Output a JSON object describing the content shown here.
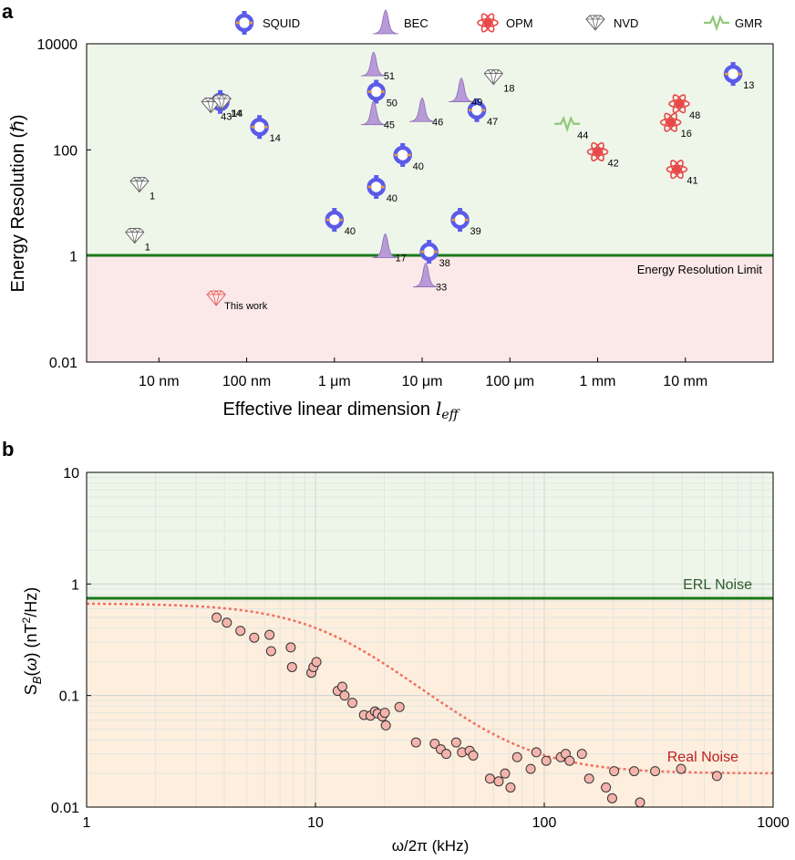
{
  "chart_data": [
    {
      "panel": "a",
      "type": "scatter",
      "xscale": "log",
      "yscale": "log",
      "xlabel": "Effective linear dimension",
      "xlabel_sym": "l",
      "xlabel_sub": "eff",
      "ylabel": "Energy Resolution (ℏ)",
      "xlim": [
        1.5e-09,
        0.1
      ],
      "ylim": [
        0.01,
        10000
      ],
      "xticks": [
        {
          "v": 1e-08,
          "label": "10 nm"
        },
        {
          "v": 1e-07,
          "label": "100 nm"
        },
        {
          "v": 1e-06,
          "label": "1 μm"
        },
        {
          "v": 1e-05,
          "label": "10 μm"
        },
        {
          "v": 0.0001,
          "label": "100 μm"
        },
        {
          "v": 0.001,
          "label": "1 mm"
        },
        {
          "v": 0.01,
          "label": "10 mm"
        }
      ],
      "yticks": [
        {
          "v": 0.01,
          "label": "0.01"
        },
        {
          "v": 1,
          "label": "1"
        },
        {
          "v": 100,
          "label": "100"
        },
        {
          "v": 10000,
          "label": "10000"
        }
      ],
      "limit_line": {
        "y": 1,
        "label": "Energy Resolution Limit",
        "color": "#1a7a1a"
      },
      "region_colors": {
        "above": "#eef6ea",
        "below": "#fbe8e8"
      },
      "legend": [
        {
          "type": "SQUID",
          "label": "SQUID"
        },
        {
          "type": "BEC",
          "label": "BEC"
        },
        {
          "type": "OPM",
          "label": "OPM"
        },
        {
          "type": "NVD",
          "label": "NVD"
        },
        {
          "type": "GMR",
          "label": "GMR"
        }
      ],
      "points": [
        {
          "type": "SQUID",
          "x": 5e-08,
          "y": 800,
          "ref": "14"
        },
        {
          "type": "SQUID",
          "x": 1.4e-07,
          "y": 270,
          "ref": "14"
        },
        {
          "type": "SQUID",
          "x": 1e-06,
          "y": 4.8,
          "ref": "40"
        },
        {
          "type": "SQUID",
          "x": 3e-06,
          "y": 20,
          "ref": "40"
        },
        {
          "type": "SQUID",
          "x": 3e-06,
          "y": 1250,
          "ref": "50"
        },
        {
          "type": "SQUID",
          "x": 6e-06,
          "y": 80,
          "ref": "40"
        },
        {
          "type": "SQUID",
          "x": 1.2e-05,
          "y": 1.2,
          "ref": "38"
        },
        {
          "type": "SQUID",
          "x": 2.7e-05,
          "y": 4.8,
          "ref": "39"
        },
        {
          "type": "SQUID",
          "x": 4.2e-05,
          "y": 560,
          "ref": "47"
        },
        {
          "type": "SQUID",
          "x": 0.035,
          "y": 2700,
          "ref": "13"
        },
        {
          "type": "BEC",
          "x": 2.8e-06,
          "y": 4000,
          "ref": "51"
        },
        {
          "type": "BEC",
          "x": 2.8e-06,
          "y": 480,
          "ref": "45"
        },
        {
          "type": "BEC",
          "x": 1e-05,
          "y": 550,
          "ref": "46"
        },
        {
          "type": "BEC",
          "x": 2.8e-05,
          "y": 1300,
          "ref": "49"
        },
        {
          "type": "BEC",
          "x": 3.8e-06,
          "y": 1.5,
          "ref": "17"
        },
        {
          "type": "BEC",
          "x": 1.1e-05,
          "y": 0.42,
          "ref": "33"
        },
        {
          "type": "OPM",
          "x": 0.001,
          "y": 92,
          "ref": "42"
        },
        {
          "type": "OPM",
          "x": 0.0068,
          "y": 330,
          "ref": "16"
        },
        {
          "type": "OPM",
          "x": 0.0085,
          "y": 740,
          "ref": "48"
        },
        {
          "type": "OPM",
          "x": 0.008,
          "y": 43,
          "ref": "41"
        },
        {
          "type": "NVD",
          "x": 6e-09,
          "y": 22,
          "ref": "1"
        },
        {
          "type": "NVD",
          "x": 5.3e-09,
          "y": 2.4,
          "ref": "1"
        },
        {
          "type": "NVD",
          "x": 3.9e-08,
          "y": 690,
          "ref": "43"
        },
        {
          "type": "NVD",
          "x": 5.2e-08,
          "y": 790,
          "ref": "14"
        },
        {
          "type": "NVD",
          "x": 6.5e-05,
          "y": 2350,
          "ref": "18"
        },
        {
          "type": "GMR",
          "x": 0.00045,
          "y": 310,
          "ref": "44"
        },
        {
          "type": "NVD_RED",
          "x": 4.5e-08,
          "y": 0.16,
          "ref": "This work"
        }
      ]
    },
    {
      "panel": "b",
      "type": "scatter",
      "xscale": "log",
      "yscale": "log",
      "xlabel": "ω/2π (kHz)",
      "ylabel": "S_B(ω) (nT²/Hz)",
      "xlim": [
        1,
        1000
      ],
      "ylim": [
        0.01,
        10
      ],
      "xticks": [
        {
          "v": 1,
          "label": "1"
        },
        {
          "v": 10,
          "label": "10"
        },
        {
          "v": 100,
          "label": "100"
        },
        {
          "v": 1000,
          "label": "1000"
        }
      ],
      "yticks": [
        {
          "v": 0.01,
          "label": "0.01"
        },
        {
          "v": 0.1,
          "label": "0.1"
        },
        {
          "v": 1,
          "label": "1"
        },
        {
          "v": 10,
          "label": "10"
        }
      ],
      "erl_line": {
        "y": 0.72,
        "label": "ERL Noise",
        "color": "#1a7a1a"
      },
      "fit_label": "Real Noise",
      "fit_color": "#f07060",
      "fit": {
        "a": 0.65,
        "fc": 12,
        "floor": 0.02
      },
      "points": [
        {
          "x": 3.7,
          "y": 0.5
        },
        {
          "x": 4.1,
          "y": 0.45
        },
        {
          "x": 4.7,
          "y": 0.38
        },
        {
          "x": 5.4,
          "y": 0.33
        },
        {
          "x": 6.3,
          "y": 0.35
        },
        {
          "x": 6.4,
          "y": 0.25
        },
        {
          "x": 7.8,
          "y": 0.27
        },
        {
          "x": 7.9,
          "y": 0.18
        },
        {
          "x": 9.6,
          "y": 0.16
        },
        {
          "x": 9.8,
          "y": 0.18
        },
        {
          "x": 10.1,
          "y": 0.2
        },
        {
          "x": 12.5,
          "y": 0.11
        },
        {
          "x": 13.1,
          "y": 0.12
        },
        {
          "x": 13.4,
          "y": 0.1
        },
        {
          "x": 14.5,
          "y": 0.086
        },
        {
          "x": 16.3,
          "y": 0.067
        },
        {
          "x": 17.4,
          "y": 0.066
        },
        {
          "x": 18.2,
          "y": 0.072
        },
        {
          "x": 18.7,
          "y": 0.069
        },
        {
          "x": 19.6,
          "y": 0.065
        },
        {
          "x": 20.1,
          "y": 0.07
        },
        {
          "x": 20.3,
          "y": 0.054
        },
        {
          "x": 23.3,
          "y": 0.079
        },
        {
          "x": 27.5,
          "y": 0.038
        },
        {
          "x": 33.2,
          "y": 0.037
        },
        {
          "x": 35.3,
          "y": 0.033
        },
        {
          "x": 37.3,
          "y": 0.03
        },
        {
          "x": 41.2,
          "y": 0.038
        },
        {
          "x": 43.7,
          "y": 0.031
        },
        {
          "x": 47.2,
          "y": 0.032
        },
        {
          "x": 48.9,
          "y": 0.029
        },
        {
          "x": 57.9,
          "y": 0.018
        },
        {
          "x": 63.2,
          "y": 0.017
        },
        {
          "x": 67.4,
          "y": 0.02
        },
        {
          "x": 71.2,
          "y": 0.015
        },
        {
          "x": 76.1,
          "y": 0.028
        },
        {
          "x": 87.2,
          "y": 0.022
        },
        {
          "x": 92.3,
          "y": 0.031
        },
        {
          "x": 102,
          "y": 0.026
        },
        {
          "x": 118,
          "y": 0.028
        },
        {
          "x": 124,
          "y": 0.03
        },
        {
          "x": 129,
          "y": 0.026
        },
        {
          "x": 146,
          "y": 0.03
        },
        {
          "x": 157,
          "y": 0.018
        },
        {
          "x": 186,
          "y": 0.015
        },
        {
          "x": 198,
          "y": 0.012
        },
        {
          "x": 202,
          "y": 0.021
        },
        {
          "x": 247,
          "y": 0.021
        },
        {
          "x": 262,
          "y": 0.011
        },
        {
          "x": 305,
          "y": 0.021
        },
        {
          "x": 396,
          "y": 0.022
        },
        {
          "x": 568,
          "y": 0.019
        }
      ]
    }
  ]
}
